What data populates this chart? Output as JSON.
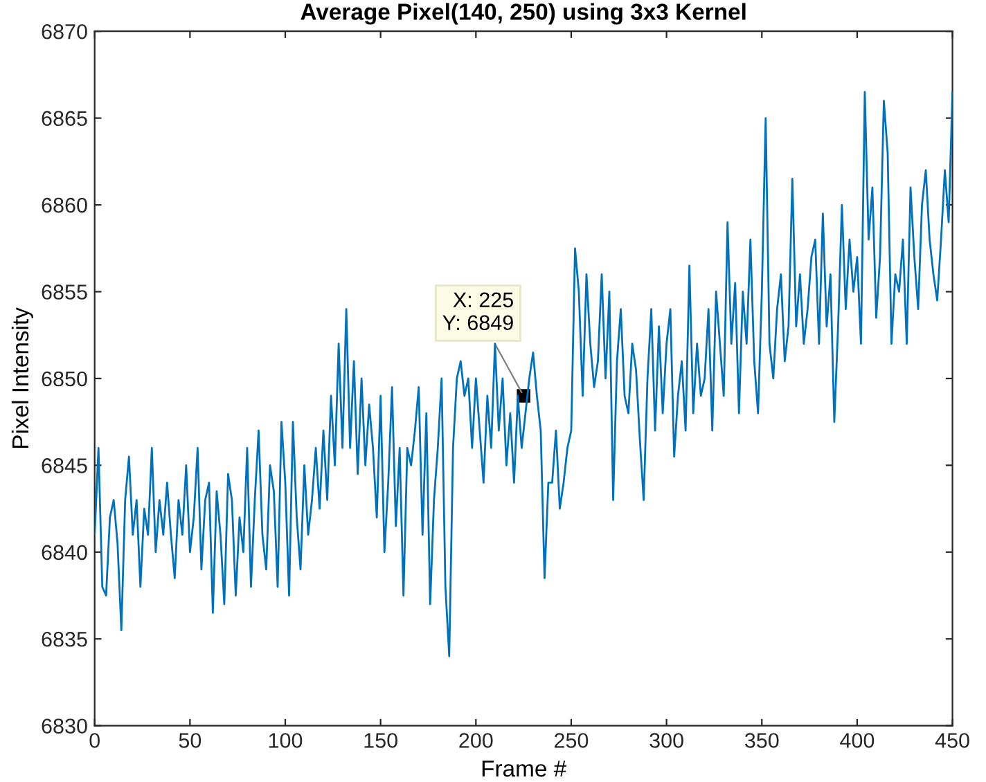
{
  "chart_data": {
    "type": "line",
    "title": "Average Pixel(140, 250) using 3x3 Kernel",
    "xlabel": "Frame #",
    "ylabel": "Pixel Intensity",
    "xlim": [
      0,
      450
    ],
    "ylim": [
      6830,
      6870
    ],
    "xticks": [
      0,
      50,
      100,
      150,
      200,
      250,
      300,
      350,
      400,
      450
    ],
    "yticks": [
      6830,
      6835,
      6840,
      6845,
      6850,
      6855,
      6860,
      6865,
      6870
    ],
    "grid": false,
    "series": [
      {
        "color": "#0072bd",
        "x": [
          0,
          2,
          4,
          6,
          8,
          10,
          12,
          14,
          16,
          18,
          20,
          22,
          24,
          26,
          28,
          30,
          32,
          34,
          36,
          38,
          40,
          42,
          44,
          46,
          48,
          50,
          52,
          54,
          56,
          58,
          60,
          62,
          64,
          66,
          68,
          70,
          72,
          74,
          76,
          78,
          80,
          82,
          84,
          86,
          88,
          90,
          92,
          94,
          96,
          98,
          100,
          102,
          104,
          106,
          108,
          110,
          112,
          114,
          116,
          118,
          120,
          122,
          124,
          126,
          128,
          130,
          132,
          134,
          136,
          138,
          140,
          142,
          144,
          146,
          148,
          150,
          152,
          154,
          156,
          158,
          160,
          162,
          164,
          166,
          168,
          170,
          172,
          174,
          176,
          178,
          180,
          182,
          184,
          186,
          188,
          190,
          192,
          194,
          196,
          198,
          200,
          202,
          204,
          206,
          208,
          210,
          212,
          214,
          216,
          218,
          220,
          222,
          224,
          226,
          228,
          230,
          232,
          234,
          236,
          238,
          240,
          242,
          244,
          246,
          248,
          250,
          252,
          254,
          256,
          258,
          260,
          262,
          264,
          266,
          268,
          270,
          272,
          274,
          276,
          278,
          280,
          282,
          284,
          286,
          288,
          290,
          292,
          294,
          296,
          298,
          300,
          302,
          304,
          306,
          308,
          310,
          312,
          314,
          316,
          318,
          320,
          322,
          324,
          326,
          328,
          330,
          332,
          334,
          336,
          338,
          340,
          342,
          344,
          346,
          348,
          350,
          352,
          354,
          356,
          358,
          360,
          362,
          364,
          366,
          368,
          370,
          372,
          374,
          376,
          378,
          380,
          382,
          384,
          386,
          388,
          390,
          392,
          394,
          396,
          398,
          400,
          402,
          404,
          406,
          408,
          410,
          412,
          414,
          416,
          418,
          420,
          422,
          424,
          426,
          428,
          430,
          432,
          434,
          436,
          438,
          440,
          442,
          444,
          446,
          448,
          450
        ],
        "values": [
          6841,
          6846,
          6838,
          6837.5,
          6842,
          6843,
          6840.5,
          6835.5,
          6843,
          6845.5,
          6841,
          6843,
          6838,
          6842.5,
          6841,
          6846,
          6840,
          6843,
          6841,
          6844,
          6841,
          6838.5,
          6843,
          6841,
          6845,
          6840,
          6842,
          6846,
          6839,
          6843,
          6844,
          6836.5,
          6843.5,
          6841,
          6837,
          6844.5,
          6843,
          6837.5,
          6842,
          6840,
          6846,
          6838,
          6843,
          6847,
          6841,
          6839,
          6845,
          6843.5,
          6838,
          6847.5,
          6844,
          6837.5,
          6847.5,
          6842,
          6839,
          6845,
          6841,
          6843,
          6846,
          6842.5,
          6847,
          6843,
          6849,
          6845,
          6852,
          6846,
          6854,
          6846,
          6851,
          6844.5,
          6850,
          6845,
          6848.5,
          6846,
          6842,
          6849,
          6840,
          6844,
          6849.5,
          6841.5,
          6846,
          6837.5,
          6846,
          6845,
          6847,
          6849.5,
          6841,
          6848,
          6837,
          6843,
          6846,
          6850,
          6838,
          6834,
          6846,
          6850,
          6851,
          6849,
          6850,
          6846,
          6850,
          6847,
          6844,
          6849,
          6846,
          6852,
          6847,
          6850,
          6845,
          6848,
          6844,
          6849,
          6846,
          6848,
          6850,
          6851.5,
          6849,
          6847,
          6838.5,
          6844,
          6844,
          6847,
          6842.5,
          6844,
          6846,
          6847,
          6857.5,
          6855,
          6849,
          6856,
          6852,
          6849.5,
          6851,
          6856,
          6850,
          6855,
          6843,
          6851,
          6854,
          6849,
          6848,
          6852,
          6850.5,
          6846.5,
          6843,
          6850,
          6854,
          6847,
          6853,
          6848,
          6852,
          6854,
          6845.5,
          6849,
          6851,
          6847,
          6856.5,
          6848,
          6852,
          6849,
          6850,
          6854,
          6847,
          6855,
          6852,
          6849,
          6859,
          6852,
          6855.5,
          6848,
          6855,
          6852,
          6858,
          6851,
          6848,
          6855,
          6865,
          6852,
          6850,
          6854,
          6856,
          6851,
          6853,
          6861.5,
          6853,
          6856,
          6852,
          6854,
          6857,
          6858,
          6852,
          6859.5,
          6853,
          6856,
          6847.5,
          6853,
          6860,
          6854,
          6858,
          6855,
          6857,
          6852,
          6866.5,
          6858,
          6861,
          6853.5,
          6857,
          6866,
          6863,
          6852,
          6856,
          6855,
          6858,
          6852,
          6861,
          6857,
          6854,
          6860,
          6862,
          6858,
          6856,
          6854.5,
          6858,
          6862,
          6859,
          6866.5
        ]
      }
    ],
    "annotations": [
      {
        "text": "X: 225\nY: 6849",
        "x": 225,
        "y": 6849
      }
    ]
  }
}
